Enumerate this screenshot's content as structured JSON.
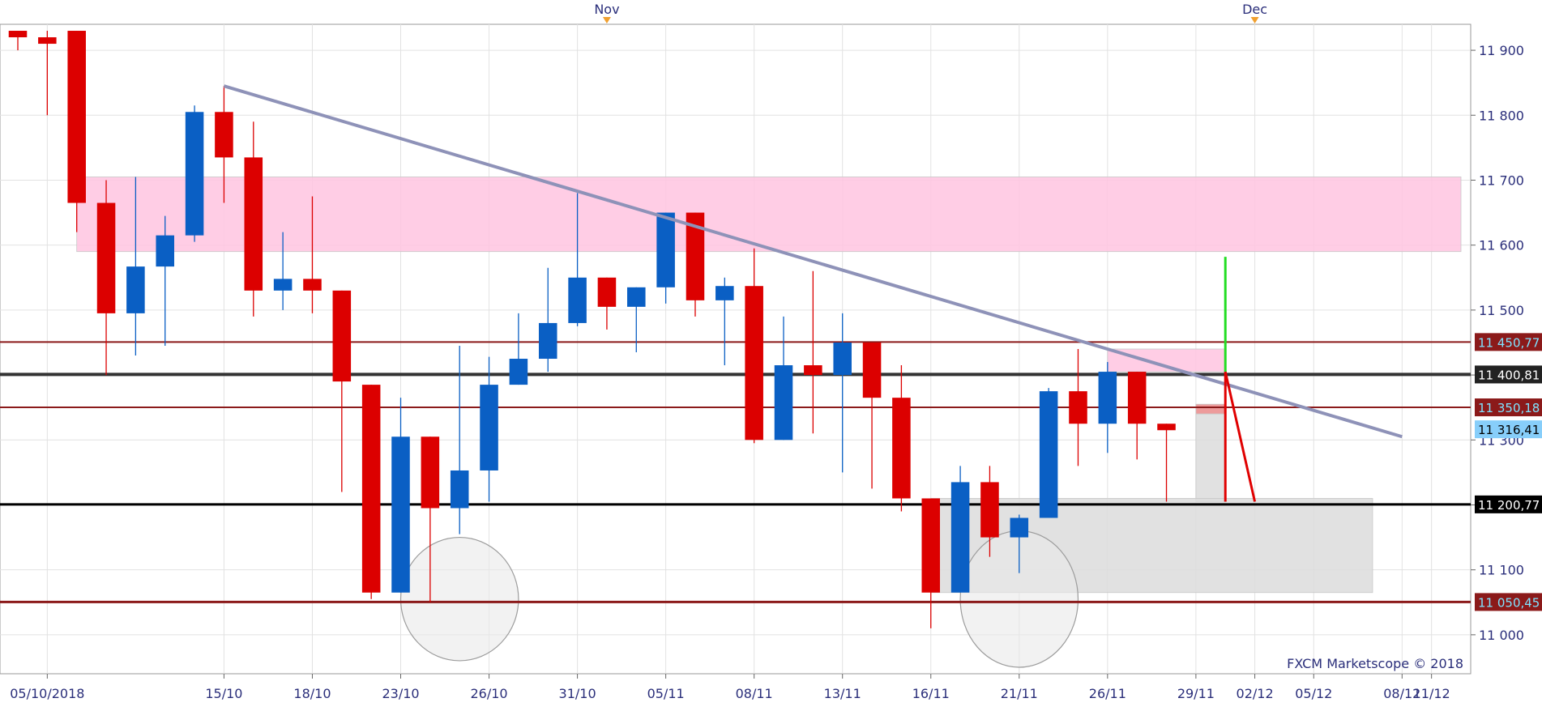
{
  "chart_data": {
    "type": "candlestick",
    "ylim": [
      10940,
      11940
    ],
    "y_ticks": [
      11000,
      11100,
      11200,
      11300,
      11400,
      11500,
      11600,
      11700,
      11800,
      11900
    ],
    "y_tick_labels": [
      "11 000",
      "11 100",
      "11 200",
      "11 300",
      "11 400",
      "11 500",
      "11 600",
      "11 700",
      "11 800",
      "11 900"
    ],
    "x_range": [
      "2018-10-04",
      "2018-12-12"
    ],
    "x_ticks": [
      {
        "date": "2018-10-05",
        "label": "05/10/2018"
      },
      {
        "date": "2018-10-15",
        "label": "15/10"
      },
      {
        "date": "2018-10-18",
        "label": "18/10"
      },
      {
        "date": "2018-10-23",
        "label": "23/10"
      },
      {
        "date": "2018-10-26",
        "label": "26/10"
      },
      {
        "date": "2018-10-31",
        "label": "31/10"
      },
      {
        "date": "2018-11-05",
        "label": "05/11"
      },
      {
        "date": "2018-11-08",
        "label": "08/11"
      },
      {
        "date": "2018-11-13",
        "label": "13/11"
      },
      {
        "date": "2018-11-16",
        "label": "16/11"
      },
      {
        "date": "2018-11-21",
        "label": "21/11"
      },
      {
        "date": "2018-11-26",
        "label": "26/11"
      },
      {
        "date": "2018-11-29",
        "label": "29/11"
      },
      {
        "date": "2018-12-02",
        "label": "02/12"
      },
      {
        "date": "2018-12-05",
        "label": "05/12"
      },
      {
        "date": "2018-12-08",
        "label": "08/12"
      },
      {
        "date": "2018-12-11",
        "label": "11/12"
      }
    ],
    "month_markers": [
      {
        "date": "2018-11-01",
        "label": "Nov"
      },
      {
        "date": "2018-12-01",
        "label": "Dec"
      }
    ],
    "grid": true,
    "candles": [
      {
        "date": "2018-10-04",
        "open": 11930,
        "high": 11930,
        "low": 11900,
        "close": 11920
      },
      {
        "date": "2018-10-05",
        "open": 11920,
        "high": 11930,
        "low": 11800,
        "close": 11910
      },
      {
        "date": "2018-10-08",
        "open": 11930,
        "high": 11930,
        "low": 11620,
        "close": 11665
      },
      {
        "date": "2018-10-09",
        "open": 11665,
        "high": 11700,
        "low": 11400,
        "close": 11495
      },
      {
        "date": "2018-10-10",
        "open": 11495,
        "high": 11705,
        "low": 11430,
        "close": 11567
      },
      {
        "date": "2018-10-11",
        "open": 11567,
        "high": 11645,
        "low": 11445,
        "close": 11615
      },
      {
        "date": "2018-10-12",
        "open": 11615,
        "high": 11815,
        "low": 11605,
        "close": 11805
      },
      {
        "date": "2018-10-15",
        "open": 11805,
        "high": 11845,
        "low": 11665,
        "close": 11735
      },
      {
        "date": "2018-10-16",
        "open": 11735,
        "high": 11790,
        "low": 11490,
        "close": 11530
      },
      {
        "date": "2018-10-17",
        "open": 11530,
        "high": 11620,
        "low": 11500,
        "close": 11548
      },
      {
        "date": "2018-10-18",
        "open": 11548,
        "high": 11675,
        "low": 11495,
        "close": 11530
      },
      {
        "date": "2018-10-19",
        "open": 11530,
        "high": 11530,
        "low": 11220,
        "close": 11390
      },
      {
        "date": "2018-10-22",
        "open": 11385,
        "high": 11385,
        "low": 11055,
        "close": 11065
      },
      {
        "date": "2018-10-23",
        "open": 11065,
        "high": 11365,
        "low": 11065,
        "close": 11305
      },
      {
        "date": "2018-10-24",
        "open": 11305,
        "high": 11305,
        "low": 11050,
        "close": 11195
      },
      {
        "date": "2018-10-25",
        "open": 11195,
        "high": 11445,
        "low": 11155,
        "close": 11253
      },
      {
        "date": "2018-10-26",
        "open": 11253,
        "high": 11428,
        "low": 11205,
        "close": 11385
      },
      {
        "date": "2018-10-29",
        "open": 11385,
        "high": 11495,
        "low": 11385,
        "close": 11425
      },
      {
        "date": "2018-10-30",
        "open": 11425,
        "high": 11565,
        "low": 11405,
        "close": 11480
      },
      {
        "date": "2018-10-31",
        "open": 11480,
        "high": 11680,
        "low": 11475,
        "close": 11550
      },
      {
        "date": "2018-11-01",
        "open": 11550,
        "high": 11550,
        "low": 11470,
        "close": 11505
      },
      {
        "date": "2018-11-02",
        "open": 11505,
        "high": 11535,
        "low": 11435,
        "close": 11535
      },
      {
        "date": "2018-11-05",
        "open": 11535,
        "high": 11650,
        "low": 11510,
        "close": 11650
      },
      {
        "date": "2018-11-06",
        "open": 11650,
        "high": 11650,
        "low": 11490,
        "close": 11515
      },
      {
        "date": "2018-11-07",
        "open": 11515,
        "high": 11550,
        "low": 11415,
        "close": 11537
      },
      {
        "date": "2018-11-08",
        "open": 11537,
        "high": 11595,
        "low": 11295,
        "close": 11300
      },
      {
        "date": "2018-11-09",
        "open": 11300,
        "high": 11490,
        "low": 11300,
        "close": 11415
      },
      {
        "date": "2018-11-12",
        "open": 11415,
        "high": 11560,
        "low": 11310,
        "close": 11400
      },
      {
        "date": "2018-11-13",
        "open": 11400,
        "high": 11495,
        "low": 11250,
        "close": 11450
      },
      {
        "date": "2018-11-14",
        "open": 11450,
        "high": 11450,
        "low": 11225,
        "close": 11365
      },
      {
        "date": "2018-11-15",
        "open": 11365,
        "high": 11415,
        "low": 11190,
        "close": 11210
      },
      {
        "date": "2018-11-16",
        "open": 11210,
        "high": 11210,
        "low": 11010,
        "close": 11065
      },
      {
        "date": "2018-11-19",
        "open": 11065,
        "high": 11260,
        "low": 11065,
        "close": 11235
      },
      {
        "date": "2018-11-20",
        "open": 11235,
        "high": 11260,
        "low": 11120,
        "close": 11150
      },
      {
        "date": "2018-11-21",
        "open": 11150,
        "high": 11185,
        "low": 11095,
        "close": 11180
      },
      {
        "date": "2018-11-22",
        "open": 11180,
        "high": 11380,
        "low": 11180,
        "close": 11375
      },
      {
        "date": "2018-11-23",
        "open": 11375,
        "high": 11440,
        "low": 11260,
        "close": 11325
      },
      {
        "date": "2018-11-26",
        "open": 11325,
        "high": 11420,
        "low": 11280,
        "close": 11405
      },
      {
        "date": "2018-11-27",
        "open": 11405,
        "high": 11405,
        "low": 11270,
        "close": 11325
      },
      {
        "date": "2018-11-28",
        "open": 11325,
        "high": 11325,
        "low": 11205,
        "close": 11315
      }
    ],
    "horizontal_levels": [
      {
        "value": 11450.77,
        "label": "11 450,77",
        "style": "resistance",
        "line_color": "#8b1a1a",
        "tag_bg": "#8b1a1a",
        "tag_fg": "#7fe3ff"
      },
      {
        "value": 11400.81,
        "label": "11 400,81",
        "style": "pivot",
        "line_color": "#333333",
        "tag_bg": "#222222",
        "tag_fg": "#ffffff"
      },
      {
        "value": 11350.18,
        "label": "11 350,18",
        "style": "resistance",
        "line_color": "#8b1a1a",
        "tag_bg": "#8b1a1a",
        "tag_fg": "#7fe3ff"
      },
      {
        "value": 11200.77,
        "label": "11 200,77",
        "style": "support",
        "line_color": "#000000",
        "tag_bg": "#000000",
        "tag_fg": "#ffffff"
      },
      {
        "value": 11050.45,
        "label": "11 050,45",
        "style": "support",
        "line_color": "#8b1a1a",
        "tag_bg": "#8b1a1a",
        "tag_fg": "#7fe3ff"
      }
    ],
    "current_price": {
      "value": 11316.41,
      "label": "11 316,41",
      "tag_bg": "#87cefa",
      "tag_fg": "#000000"
    },
    "trendline": {
      "from": {
        "date": "2018-10-15",
        "value": 11845
      },
      "to": {
        "date": "2018-12-08",
        "value": 11305
      },
      "color": "#8e92b8"
    },
    "zones": [
      {
        "from": "2018-10-07",
        "to": "2018-12-12",
        "low": 11590,
        "high": 11705,
        "color": "#ffc4e1"
      },
      {
        "from": "2018-11-26",
        "to": "2018-11-30",
        "low": 11405,
        "high": 11440,
        "color": "#ffc4e1"
      },
      {
        "from": "2018-11-29",
        "to": "2018-11-30",
        "low": 11340,
        "high": 11355,
        "color": "#ea8a8a"
      },
      {
        "from": "2018-11-29",
        "to": "2018-11-30",
        "low": 11205,
        "high": 11340,
        "color": "#dcdcdc"
      },
      {
        "from": "2018-11-16",
        "to": "2018-12-07",
        "low": 11065,
        "high": 11210,
        "color": "#dcdcdc"
      }
    ],
    "ellipses": [
      {
        "center_date": "2018-10-25",
        "center_value": 11055,
        "half_width_days": 2.0,
        "half_height": 95
      },
      {
        "center_date": "2018-11-21",
        "center_value": 11055,
        "half_width_days": 2.0,
        "half_height": 105
      }
    ],
    "projections": [
      {
        "from": {
          "date": "2018-11-30",
          "value": 11405
        },
        "to": {
          "date": "2018-11-30",
          "value": 11582
        },
        "color": "#22dd22"
      },
      {
        "from": {
          "date": "2018-11-30",
          "value": 11405
        },
        "to": {
          "date": "2018-11-30",
          "value": 11205
        },
        "color": "#e00000"
      },
      {
        "from": {
          "date": "2018-11-30",
          "value": 11405
        },
        "to": {
          "date": "2018-12-02",
          "value": 11205
        },
        "color": "#e00000"
      }
    ],
    "colors": {
      "bull": "#0a5fc4",
      "bear": "#dc0000",
      "axis_text": "#2a2e7a",
      "grid": "#e2e2e2"
    },
    "watermark": "FXCM Marketscope © 2018"
  }
}
